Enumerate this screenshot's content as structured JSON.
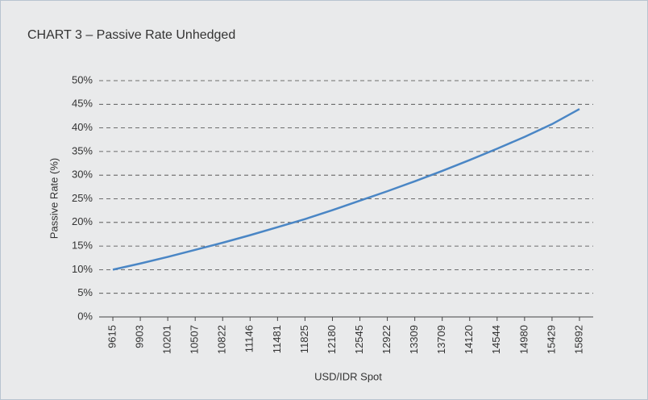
{
  "chart_data": {
    "type": "line",
    "title": "CHART 3 – Passive Rate Unhedged",
    "x_label": "USD/IDR Spot",
    "y_label": "Passive Rate (%)",
    "categories": [
      "9615",
      "9903",
      "10201",
      "10507",
      "10822",
      "11146",
      "11481",
      "11825",
      "12180",
      "12545",
      "12922",
      "13309",
      "13709",
      "14120",
      "14544",
      "14980",
      "15429",
      "15892"
    ],
    "series": [
      {
        "name": "Passive Rate",
        "color": "#4a86c5",
        "values": [
          10,
          11.3,
          12.7,
          14.2,
          15.7,
          17.3,
          19.0,
          20.7,
          22.6,
          24.6,
          26.6,
          28.7,
          30.9,
          33.2,
          35.6,
          38.1,
          40.8,
          44.0
        ]
      }
    ],
    "ylim": [
      0,
      50
    ],
    "yticks": [
      {
        "value": 0,
        "label": "0%"
      },
      {
        "value": 5,
        "label": "5%"
      },
      {
        "value": 10,
        "label": "10%"
      },
      {
        "value": 15,
        "label": "15%"
      },
      {
        "value": 20,
        "label": "20%"
      },
      {
        "value": 25,
        "label": "25%"
      },
      {
        "value": 30,
        "label": "30%"
      },
      {
        "value": 35,
        "label": "35%"
      },
      {
        "value": 40,
        "label": "40%"
      },
      {
        "value": 45,
        "label": "45%"
      },
      {
        "value": 50,
        "label": "50%"
      }
    ],
    "grid": true
  }
}
